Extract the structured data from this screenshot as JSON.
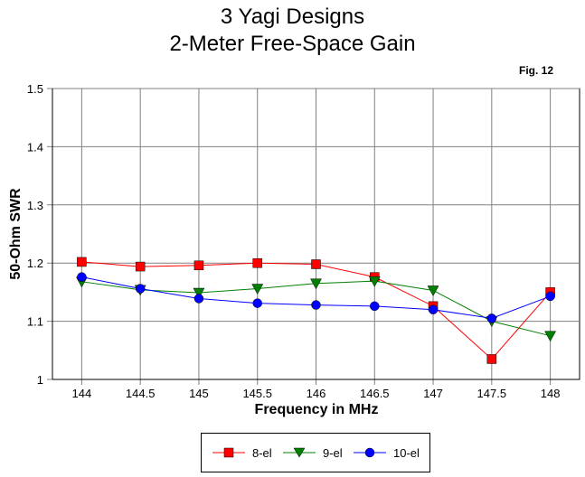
{
  "title": "3 Yagi Designs",
  "subtitle": "2-Meter Free-Space Gain",
  "figure_label": "Fig. 12",
  "chart_data": {
    "type": "line",
    "xlabel": "Frequency in MHz",
    "ylabel": "50-Ohm SWR",
    "x": [
      144,
      144.5,
      145,
      145.5,
      146,
      146.5,
      147,
      147.5,
      148
    ],
    "x_tick_labels": [
      "144",
      "144.5",
      "145",
      "145.5",
      "146",
      "146.5",
      "147",
      "147.5",
      "148"
    ],
    "y_ticks": [
      1,
      1.1,
      1.2,
      1.3,
      1.4,
      1.5
    ],
    "y_tick_labels": [
      "1",
      "1.1",
      "1.2",
      "1.3",
      "1.4",
      "1.5"
    ],
    "xlim": [
      143.75,
      148.25
    ],
    "ylim": [
      1,
      1.5
    ],
    "grid": true,
    "legend_position": "bottom",
    "series": [
      {
        "name": "8-el",
        "color": "#ff0000",
        "marker": "square",
        "values": [
          1.202,
          1.194,
          1.196,
          1.2,
          1.198,
          1.176,
          1.126,
          1.035,
          1.15
        ]
      },
      {
        "name": "9-el",
        "color": "#008000",
        "marker": "triangle-down",
        "values": [
          1.168,
          1.154,
          1.149,
          1.156,
          1.165,
          1.169,
          1.153,
          1.1,
          1.075
        ]
      },
      {
        "name": "10-el",
        "color": "#0000ff",
        "marker": "circle",
        "values": [
          1.176,
          1.156,
          1.139,
          1.131,
          1.128,
          1.126,
          1.12,
          1.105,
          1.143
        ]
      }
    ]
  }
}
